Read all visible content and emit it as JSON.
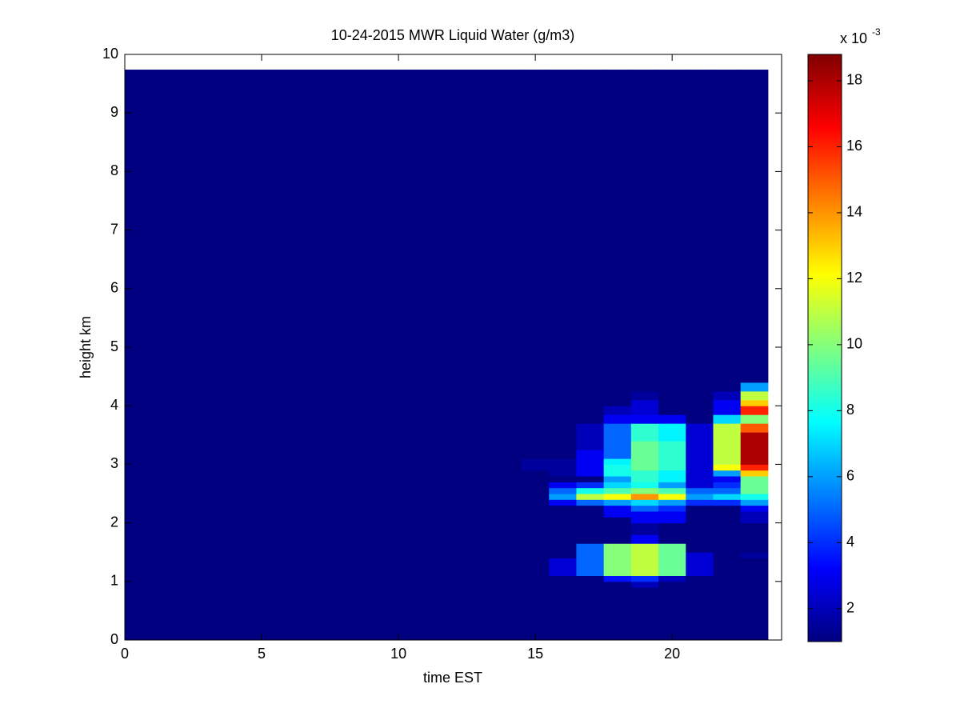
{
  "chart_data": {
    "type": "heatmap",
    "title": "10-24-2015 MWR Liquid Water (g/m3)",
    "xlabel": "time EST",
    "ylabel": "height km",
    "colormap": "jet",
    "x_edges": [
      0,
      14.5,
      15.5,
      16.5,
      17.5,
      18.5,
      19.5,
      20.5,
      21.5,
      22.5,
      23.5
    ],
    "y_edges": [
      0,
      0.9,
      1.0,
      1.1,
      1.25,
      1.4,
      1.5,
      1.65,
      1.8,
      2.0,
      2.1,
      2.2,
      2.3,
      2.4,
      2.5,
      2.6,
      2.7,
      2.8,
      2.9,
      3.0,
      3.1,
      3.25,
      3.4,
      3.55,
      3.7,
      3.85,
      4.0,
      4.1,
      4.25,
      4.4,
      9.74
    ],
    "values": [
      [
        1,
        1,
        1,
        1,
        1,
        1,
        1,
        1,
        1,
        1,
        1,
        1,
        1,
        1,
        1,
        1,
        1,
        1,
        1,
        1,
        1,
        1,
        1,
        1,
        1,
        1,
        1,
        1,
        1,
        1
      ],
      [
        1,
        1,
        1,
        1,
        1,
        1,
        1,
        1,
        1,
        1,
        1,
        1,
        1,
        1,
        1,
        1,
        1,
        1,
        1.5,
        1.5,
        1,
        1,
        1,
        1,
        1,
        1,
        1,
        1,
        1,
        1
      ],
      [
        1,
        1,
        1,
        2.5,
        2.5,
        1,
        1,
        1,
        1,
        1,
        1,
        1,
        3,
        6,
        5,
        3,
        1,
        1.5,
        1.5,
        1.5,
        1,
        1,
        1,
        1,
        1,
        1,
        1,
        1,
        1,
        1
      ],
      [
        1,
        1,
        1,
        5,
        5,
        5,
        5,
        1,
        1,
        1,
        1,
        1,
        5,
        11,
        8,
        4,
        1,
        3,
        3,
        3,
        3,
        2,
        2,
        2,
        1,
        1,
        1,
        1,
        1,
        1
      ],
      [
        1,
        1,
        3.5,
        10,
        10,
        10,
        10,
        1,
        1,
        1,
        3,
        3,
        6,
        12,
        9,
        7,
        6,
        8,
        8,
        7.5,
        5,
        5,
        5,
        5,
        3,
        2,
        1,
        1,
        1,
        1
      ],
      [
        1,
        2,
        4,
        11,
        11,
        11,
        11,
        3,
        1.5,
        3,
        3,
        5,
        7,
        14,
        10,
        8,
        8.5,
        8.5,
        9.5,
        9.5,
        9.5,
        9.5,
        8.5,
        8.5,
        3,
        2.5,
        2.5,
        1.5,
        1,
        1
      ],
      [
        1,
        1,
        2,
        9.5,
        9.5,
        9.5,
        9.5,
        1,
        1,
        3,
        3,
        4,
        6,
        12,
        9,
        6,
        7.5,
        7.5,
        8.5,
        8.5,
        8.5,
        8.5,
        7.5,
        7.5,
        3,
        1,
        1,
        1,
        1,
        1
      ],
      [
        1,
        1,
        1,
        2.5,
        2.5,
        2.5,
        1,
        1,
        1,
        1,
        1,
        1,
        4,
        6,
        5,
        2.5,
        2.5,
        2.5,
        2.5,
        2.5,
        2.5,
        2.5,
        2.5,
        2.5,
        1,
        1,
        1,
        1,
        1,
        1
      ],
      [
        1,
        1,
        1,
        1,
        1,
        1,
        1,
        1,
        1,
        1,
        1,
        1,
        4,
        7,
        5,
        4,
        3,
        6,
        12,
        11,
        11,
        11,
        11,
        11,
        7,
        3,
        3,
        2,
        1,
        1
      ],
      [
        1,
        1,
        1,
        1,
        1,
        1.5,
        1,
        1,
        1,
        2,
        2,
        3,
        6,
        8,
        9.5,
        9.5,
        9.5,
        13,
        16,
        18,
        18,
        18,
        18,
        15,
        10,
        16,
        13,
        11,
        6,
        1
      ]
    ],
    "xlim": [
      0,
      24
    ],
    "ylim": [
      0,
      10
    ],
    "xticks": [
      0,
      5,
      10,
      15,
      20
    ],
    "yticks": [
      0,
      1,
      2,
      3,
      4,
      5,
      6,
      7,
      8,
      9,
      10
    ],
    "clim": [
      1,
      18.8
    ],
    "cticks": [
      2,
      4,
      6,
      8,
      10,
      12,
      14,
      16,
      18
    ],
    "colorbar_label": "x 10",
    "colorbar_exponent": "-3"
  }
}
